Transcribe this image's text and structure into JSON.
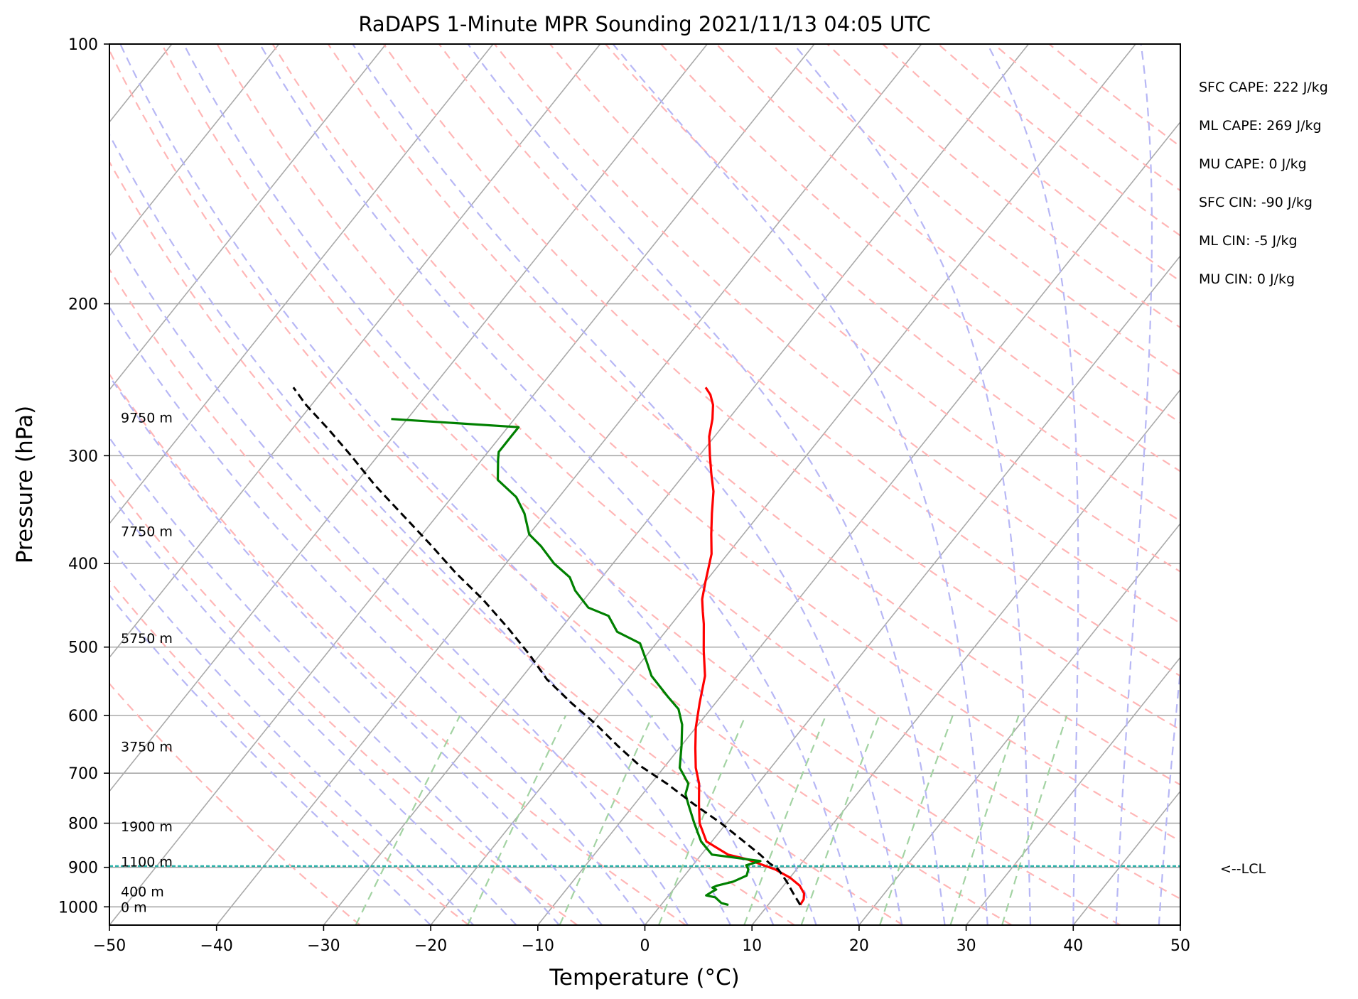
{
  "chart_data": {
    "type": "line",
    "title": "RaDAPS 1-Minute MPR Sounding 2021/11/13 04:05 UTC",
    "xlabel": "Temperature (°C)",
    "ylabel": "Pressure (hPa)",
    "xlim": [
      -50,
      50
    ],
    "ylim": [
      1050,
      100
    ],
    "y_scale": "log",
    "x_ticks": [
      -50,
      -40,
      -30,
      -20,
      -10,
      0,
      10,
      20,
      30,
      40,
      50
    ],
    "x_tick_labels": [
      "−50",
      "−40",
      "−30",
      "−20",
      "−10",
      "0",
      "10",
      "20",
      "30",
      "40",
      "50"
    ],
    "y_ticks": [
      100,
      200,
      300,
      400,
      500,
      600,
      700,
      800,
      900,
      1000
    ],
    "y_tick_labels": [
      "100",
      "200",
      "300",
      "400",
      "500",
      "600",
      "700",
      "800",
      "900",
      "1000"
    ],
    "grid": true,
    "skew_t": true,
    "colors": {
      "temperature": "#ff0000",
      "dewpoint": "#008000",
      "parcel": "#000000",
      "isotherm": "#a9a9a9",
      "dry_adiabat": "#ffb6b6",
      "moist_adiabat": "#b7b7f5",
      "mixing_ratio": "#a3d3a3",
      "lcl": "#2ab0a8"
    },
    "series": [
      {
        "key": "temperature",
        "points": [
          [
            13.0,
            995
          ],
          [
            12.9,
            980
          ],
          [
            12.5,
            965
          ],
          [
            11.5,
            945
          ],
          [
            10.0,
            925
          ],
          [
            8.0,
            905
          ],
          [
            4.5,
            880
          ],
          [
            2.5,
            870
          ],
          [
            -0.5,
            840
          ],
          [
            -2.5,
            800
          ],
          [
            -4.0,
            760
          ],
          [
            -5.5,
            720
          ],
          [
            -7.0,
            690
          ],
          [
            -8.5,
            655
          ],
          [
            -10.0,
            620
          ],
          [
            -11.5,
            580
          ],
          [
            -13.0,
            540
          ],
          [
            -15.0,
            505
          ],
          [
            -17.0,
            470
          ],
          [
            -18.0,
            455
          ],
          [
            -19.0,
            440
          ],
          [
            -20.0,
            420
          ],
          [
            -21.5,
            390
          ],
          [
            -23.0,
            370
          ],
          [
            -24.5,
            350
          ],
          [
            -26.0,
            330
          ],
          [
            -27.5,
            315
          ],
          [
            -29.0,
            300
          ],
          [
            -30.5,
            285
          ],
          [
            -31.5,
            272
          ],
          [
            -32.5,
            262
          ],
          [
            -33.5,
            255
          ],
          [
            -34.5,
            250
          ]
        ]
      },
      {
        "key": "dewpoint",
        "points": [
          [
            6.3,
            995
          ],
          [
            5.5,
            990
          ],
          [
            4.5,
            975
          ],
          [
            3.5,
            970
          ],
          [
            3.8,
            960
          ],
          [
            4.0,
            955
          ],
          [
            3.5,
            950
          ],
          [
            3.8,
            945
          ],
          [
            5.0,
            935
          ],
          [
            5.8,
            920
          ],
          [
            5.5,
            905
          ],
          [
            5.0,
            895
          ],
          [
            6.0,
            885
          ],
          [
            1.0,
            870
          ],
          [
            -1.0,
            840
          ],
          [
            -3.0,
            800
          ],
          [
            -5.0,
            760
          ],
          [
            -6.0,
            740
          ],
          [
            -6.5,
            720
          ],
          [
            -8.5,
            690
          ],
          [
            -10.0,
            650
          ],
          [
            -11.5,
            615
          ],
          [
            -13.0,
            590
          ],
          [
            -15.0,
            570
          ],
          [
            -18.0,
            540
          ],
          [
            -19.5,
            520
          ],
          [
            -21.5,
            495
          ],
          [
            -24.5,
            480
          ],
          [
            -26.5,
            460
          ],
          [
            -29.0,
            450
          ],
          [
            -31.5,
            430
          ],
          [
            -33.0,
            415
          ],
          [
            -35.5,
            400
          ],
          [
            -38.0,
            382
          ],
          [
            -40.0,
            370
          ],
          [
            -42.0,
            350
          ],
          [
            -44.0,
            335
          ],
          [
            -47.0,
            320
          ],
          [
            -48.5,
            303
          ],
          [
            -49.0,
            297
          ],
          [
            -49.0,
            292
          ],
          [
            -49.0,
            285
          ],
          [
            -49.0,
            278
          ],
          [
            -61.5,
            272
          ]
        ]
      },
      {
        "key": "parcel",
        "points": [
          [
            13.0,
            995
          ],
          [
            11.5,
            965
          ],
          [
            10.0,
            935
          ],
          [
            8.3,
            905
          ],
          [
            7.0,
            890
          ],
          [
            5.5,
            870
          ],
          [
            3.0,
            840
          ],
          [
            -0.5,
            800
          ],
          [
            -4.5,
            760
          ],
          [
            -8.5,
            720
          ],
          [
            -12.5,
            685
          ],
          [
            -16.0,
            650
          ],
          [
            -19.5,
            615
          ],
          [
            -23.5,
            580
          ],
          [
            -27.5,
            545
          ],
          [
            -31.0,
            510
          ],
          [
            -35.0,
            475
          ],
          [
            -39.5,
            440
          ],
          [
            -44.0,
            410
          ],
          [
            -48.5,
            380
          ],
          [
            -53.5,
            350
          ],
          [
            -58.0,
            325
          ],
          [
            -62.5,
            300
          ],
          [
            -66.5,
            280
          ],
          [
            -70.5,
            262
          ],
          [
            -73.0,
            250
          ]
        ]
      }
    ],
    "lcl_pressure": 897,
    "lcl_label": "<--LCL",
    "height_labels": [
      {
        "text": "9750 m",
        "p": 271
      },
      {
        "text": "7750 m",
        "p": 367
      },
      {
        "text": "5750 m",
        "p": 488
      },
      {
        "text": "3750 m",
        "p": 652
      },
      {
        "text": "1900 m",
        "p": 807
      },
      {
        "text": "1100 m",
        "p": 886
      },
      {
        "text": "400 m",
        "p": 960
      },
      {
        "text": "0 m",
        "p": 1000
      }
    ],
    "indices": [
      "SFC CAPE: 222 J/kg",
      "ML CAPE: 269 J/kg",
      "MU CAPE: 0 J/kg",
      "SFC CIN: -90 J/kg",
      "ML CIN: -5 J/kg",
      "MU CIN: 0 J/kg"
    ]
  }
}
